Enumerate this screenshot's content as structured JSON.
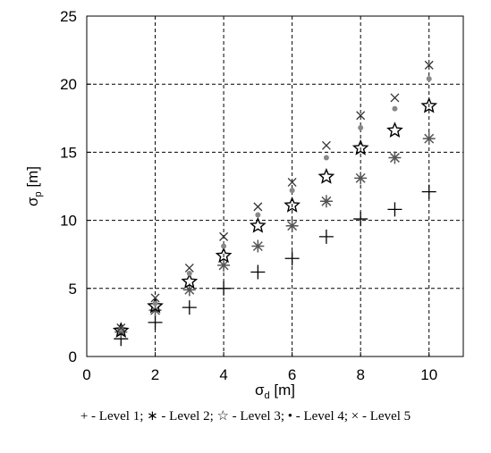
{
  "chart_data": {
    "type": "scatter",
    "xlabel": "σd [m]",
    "ylabel": "σp [m]",
    "xlabel_parts": {
      "base": "σ",
      "sub": "d",
      "unit": " [m]"
    },
    "ylabel_parts": {
      "base": "σ",
      "sub": "p",
      "unit": " [m]"
    },
    "xlim": [
      0,
      11
    ],
    "ylim": [
      0,
      25
    ],
    "xticks": [
      0,
      2,
      4,
      6,
      8,
      10
    ],
    "yticks": [
      0,
      5,
      10,
      15,
      20,
      25
    ],
    "grid": true,
    "grid_style": "dashed",
    "x": [
      1,
      2,
      3,
      4,
      5,
      6,
      7,
      8,
      9,
      10
    ],
    "series": [
      {
        "name": "Level 1",
        "marker": "plus",
        "color": "#000000",
        "values": [
          1.3,
          2.5,
          3.6,
          5.0,
          6.2,
          7.2,
          8.8,
          10.1,
          10.8,
          12.1
        ]
      },
      {
        "name": "Level 2",
        "marker": "asterisk",
        "color": "#555555",
        "values": [
          1.8,
          3.4,
          4.9,
          6.7,
          8.1,
          9.6,
          11.4,
          13.1,
          14.6,
          16.0
        ]
      },
      {
        "name": "Level 3",
        "marker": "star",
        "color": "#000000",
        "values": [
          1.9,
          3.7,
          5.5,
          7.4,
          9.6,
          11.1,
          13.2,
          15.3,
          16.6,
          18.4
        ]
      },
      {
        "name": "Level 4",
        "marker": "dot",
        "color": "#888888",
        "values": [
          2.0,
          3.9,
          6.1,
          8.1,
          10.4,
          12.2,
          14.6,
          16.8,
          18.2,
          20.4
        ]
      },
      {
        "name": "Level 5",
        "marker": "cross",
        "color": "#333333",
        "values": [
          2.1,
          4.3,
          6.5,
          8.8,
          11.0,
          12.8,
          15.5,
          17.7,
          19.0,
          21.4
        ]
      }
    ]
  },
  "caption": "+ - Level 1; ∗ - Level 2; ☆ - Level 3; • - Level 4; × - Level 5"
}
